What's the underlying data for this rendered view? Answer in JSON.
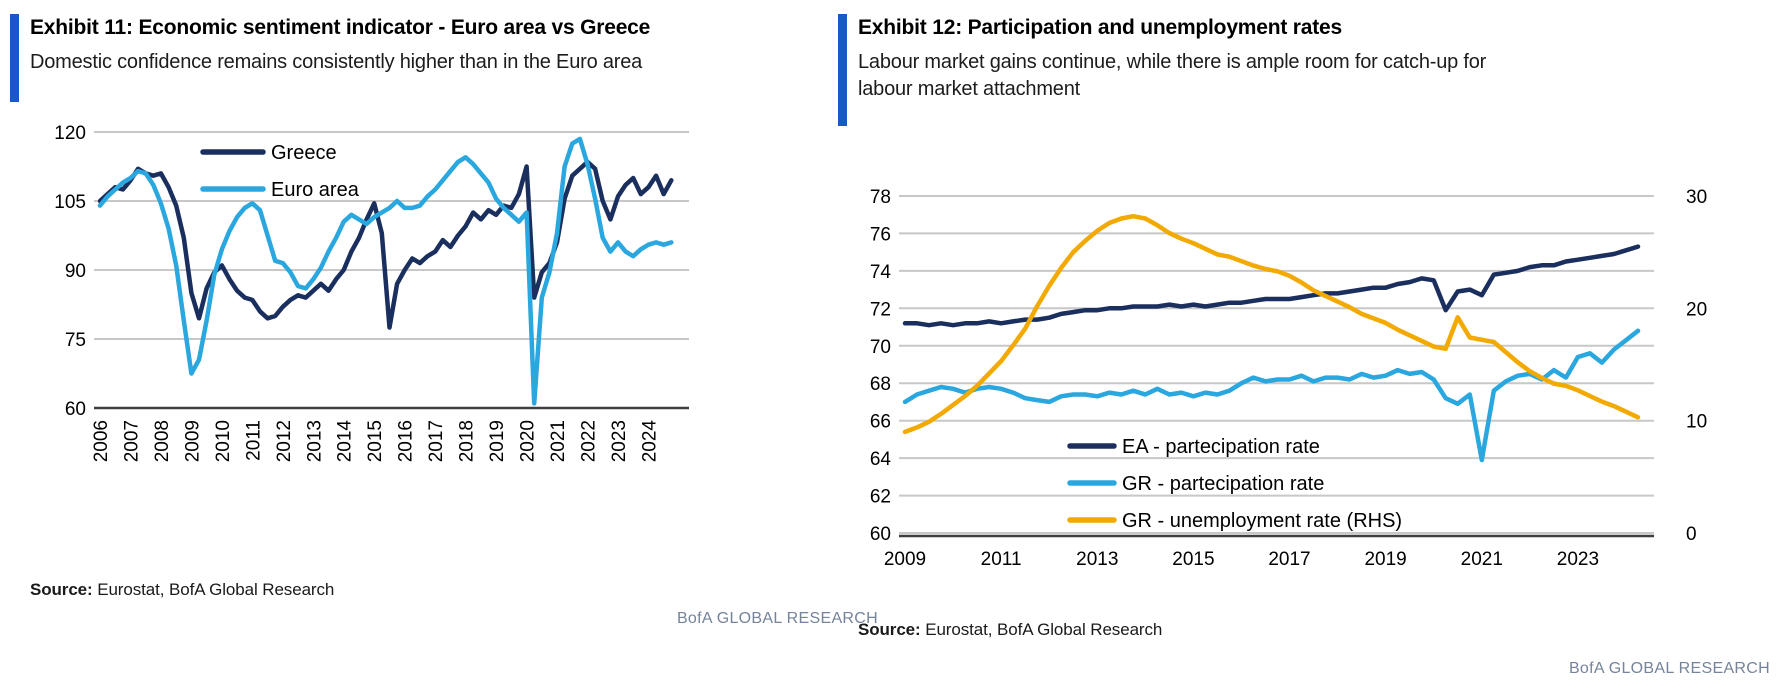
{
  "colors": {
    "accent_bar": "#1659c7",
    "navy": "#1a2f5e",
    "light_blue": "#2aa7df",
    "gold": "#f2a900",
    "gridline": "#c8c8c8",
    "axis": "#3f3f3f",
    "footer_text": "#75849a"
  },
  "left_panel": {
    "title": "Exhibit 11: Economic sentiment indicator - Euro area vs Greece",
    "subtitle": "Domestic confidence remains consistently higher than in the Euro area",
    "source_label": "Source:",
    "source_text": "Eurostat, BofA Global Research",
    "footer": "BofA GLOBAL RESEARCH"
  },
  "right_panel": {
    "title": "Exhibit 12: Participation and unemployment rates",
    "subtitle": "Labour market gains continue, while there is ample room for catch-up for labour market attachment",
    "source_label": "Source:",
    "source_text": "Eurostat, BofA Global Research",
    "footer": "BofA GLOBAL RESEARCH"
  },
  "chart_data": [
    {
      "id": "esi",
      "type": "line",
      "title": "Economic sentiment indicator - Euro area vs Greece",
      "x_start": 2006.0,
      "x_step": 0.25,
      "xlim": [
        2006,
        2025.2
      ],
      "ylim": [
        60,
        120
      ],
      "yticks": [
        60,
        75,
        90,
        105,
        120
      ],
      "xticks": [
        2006,
        2007,
        2008,
        2009,
        2010,
        2011,
        2012,
        2013,
        2014,
        2015,
        2016,
        2017,
        2018,
        2019,
        2020,
        2021,
        2022,
        2023,
        2024
      ],
      "xtick_labels": [
        "2006",
        "2007",
        "2008",
        "2009",
        "2010",
        "2011",
        "2012",
        "2013",
        "2014",
        "2015",
        "2016",
        "2017",
        "2018",
        "2019",
        "2020",
        "2021",
        "2022",
        "2023",
        "2024"
      ],
      "xtick_rotation": -90,
      "grid": true,
      "axis_double": false,
      "legend_position": "inside-top-left",
      "series": [
        {
          "name": "Greece",
          "color": "#1a2f5e",
          "axis": "left",
          "values": [
            105,
            106.5,
            108,
            107.5,
            109.5,
            112,
            111,
            110.5,
            111,
            108,
            104,
            97,
            85,
            79.5,
            86,
            89.5,
            91,
            88,
            85.5,
            84,
            83.5,
            81,
            79.5,
            80,
            82,
            83.5,
            84.5,
            84,
            85.5,
            87,
            85.5,
            88,
            90,
            94,
            97,
            101,
            104.5,
            98,
            77.5,
            87,
            90,
            92.5,
            91.5,
            93,
            94,
            96.5,
            95,
            97.5,
            99.5,
            102.5,
            101,
            103,
            102,
            104,
            103.5,
            106.5,
            112.5,
            84,
            89.5,
            91.5,
            96,
            105.5,
            110.5,
            112,
            113.5,
            112,
            105,
            101,
            106,
            108.5,
            110,
            106.5,
            108,
            110.5,
            106.5,
            109.5
          ]
        },
        {
          "name": "Euro area",
          "color": "#2aa7df",
          "axis": "left",
          "values": [
            104,
            106,
            107.5,
            109,
            110,
            111.5,
            111,
            108.5,
            104.5,
            99,
            91,
            79,
            67.5,
            70.5,
            79,
            89,
            94.5,
            98.5,
            101.5,
            103.5,
            104.5,
            103,
            97.5,
            92,
            91.5,
            89.5,
            86.5,
            86,
            88,
            90.5,
            94,
            97,
            100.5,
            102,
            101,
            100,
            101.5,
            102.5,
            103.5,
            105,
            103.5,
            103.5,
            104,
            106,
            107.5,
            109.5,
            111.5,
            113.5,
            114.5,
            113,
            111,
            109,
            105.5,
            103.5,
            102,
            100.5,
            102.5,
            61,
            84,
            89.5,
            98,
            112.5,
            117.5,
            118.5,
            113,
            105.5,
            97,
            94,
            96,
            94,
            93,
            94.5,
            95.5,
            96,
            95.5,
            96
          ]
        }
      ]
    },
    {
      "id": "labour",
      "type": "line",
      "title": "Participation and unemployment rates",
      "x_start": 2009.0,
      "x_step": 0.25,
      "xlim": [
        2009,
        2024.5
      ],
      "ylim": [
        60,
        78
      ],
      "yticks": [
        60,
        62,
        64,
        66,
        68,
        70,
        72,
        74,
        76,
        78
      ],
      "ylim_right": [
        0,
        30
      ],
      "yticks_right": [
        0,
        10,
        20,
        30
      ],
      "xticks": [
        2009,
        2011,
        2013,
        2015,
        2017,
        2019,
        2021,
        2023
      ],
      "xtick_labels": [
        "2009",
        "2011",
        "2013",
        "2015",
        "2017",
        "2019",
        "2021",
        "2023"
      ],
      "xtick_rotation": 0,
      "grid": true,
      "axis_double": true,
      "legend_position": "inside-bottom-center",
      "series": [
        {
          "name": "EA - partecipation rate",
          "color": "#1a2f5e",
          "axis": "left",
          "values": [
            71.2,
            71.2,
            71.1,
            71.2,
            71.1,
            71.2,
            71.2,
            71.3,
            71.2,
            71.3,
            71.4,
            71.4,
            71.5,
            71.7,
            71.8,
            71.9,
            71.9,
            72,
            72,
            72.1,
            72.1,
            72.1,
            72.2,
            72.1,
            72.2,
            72.1,
            72.2,
            72.3,
            72.3,
            72.4,
            72.5,
            72.5,
            72.5,
            72.6,
            72.7,
            72.8,
            72.8,
            72.9,
            73,
            73.1,
            73.1,
            73.3,
            73.4,
            73.6,
            73.5,
            71.9,
            72.9,
            73,
            72.7,
            73.8,
            73.9,
            74,
            74.2,
            74.3,
            74.3,
            74.5,
            74.6,
            74.7,
            74.8,
            74.9,
            75.1,
            75.3
          ]
        },
        {
          "name": "GR - partecipation rate",
          "color": "#2aa7df",
          "axis": "left",
          "values": [
            67,
            67.4,
            67.6,
            67.8,
            67.7,
            67.5,
            67.7,
            67.8,
            67.7,
            67.5,
            67.2,
            67.1,
            67,
            67.3,
            67.4,
            67.4,
            67.3,
            67.5,
            67.4,
            67.6,
            67.4,
            67.7,
            67.4,
            67.5,
            67.3,
            67.5,
            67.4,
            67.6,
            68,
            68.3,
            68.1,
            68.2,
            68.2,
            68.4,
            68.1,
            68.3,
            68.3,
            68.2,
            68.5,
            68.3,
            68.4,
            68.7,
            68.5,
            68.6,
            68.2,
            67.2,
            66.9,
            67.4,
            63.9,
            67.6,
            68.1,
            68.4,
            68.5,
            68.2,
            68.7,
            68.3,
            69.4,
            69.6,
            69.1,
            69.8,
            70.3,
            70.8
          ]
        },
        {
          "name": "GR - unemployment rate (RHS)",
          "color": "#f2a900",
          "axis": "right",
          "values": [
            9,
            9.4,
            9.9,
            10.6,
            11.4,
            12.2,
            13.1,
            14.2,
            15.3,
            16.7,
            18.2,
            20.2,
            22,
            23.6,
            25,
            26,
            26.9,
            27.6,
            28,
            28.2,
            28,
            27.4,
            26.7,
            26.2,
            25.8,
            25.3,
            24.8,
            24.6,
            24.2,
            23.8,
            23.5,
            23.3,
            22.9,
            22.3,
            21.6,
            21.1,
            20.6,
            20.1,
            19.5,
            19.1,
            18.7,
            18.1,
            17.6,
            17.1,
            16.6,
            16.4,
            19.2,
            17.4,
            17.2,
            17,
            16.1,
            15.2,
            14.4,
            13.8,
            13.3,
            13.1,
            12.7,
            12.2,
            11.7,
            11.3,
            10.8,
            10.3
          ]
        }
      ]
    }
  ]
}
